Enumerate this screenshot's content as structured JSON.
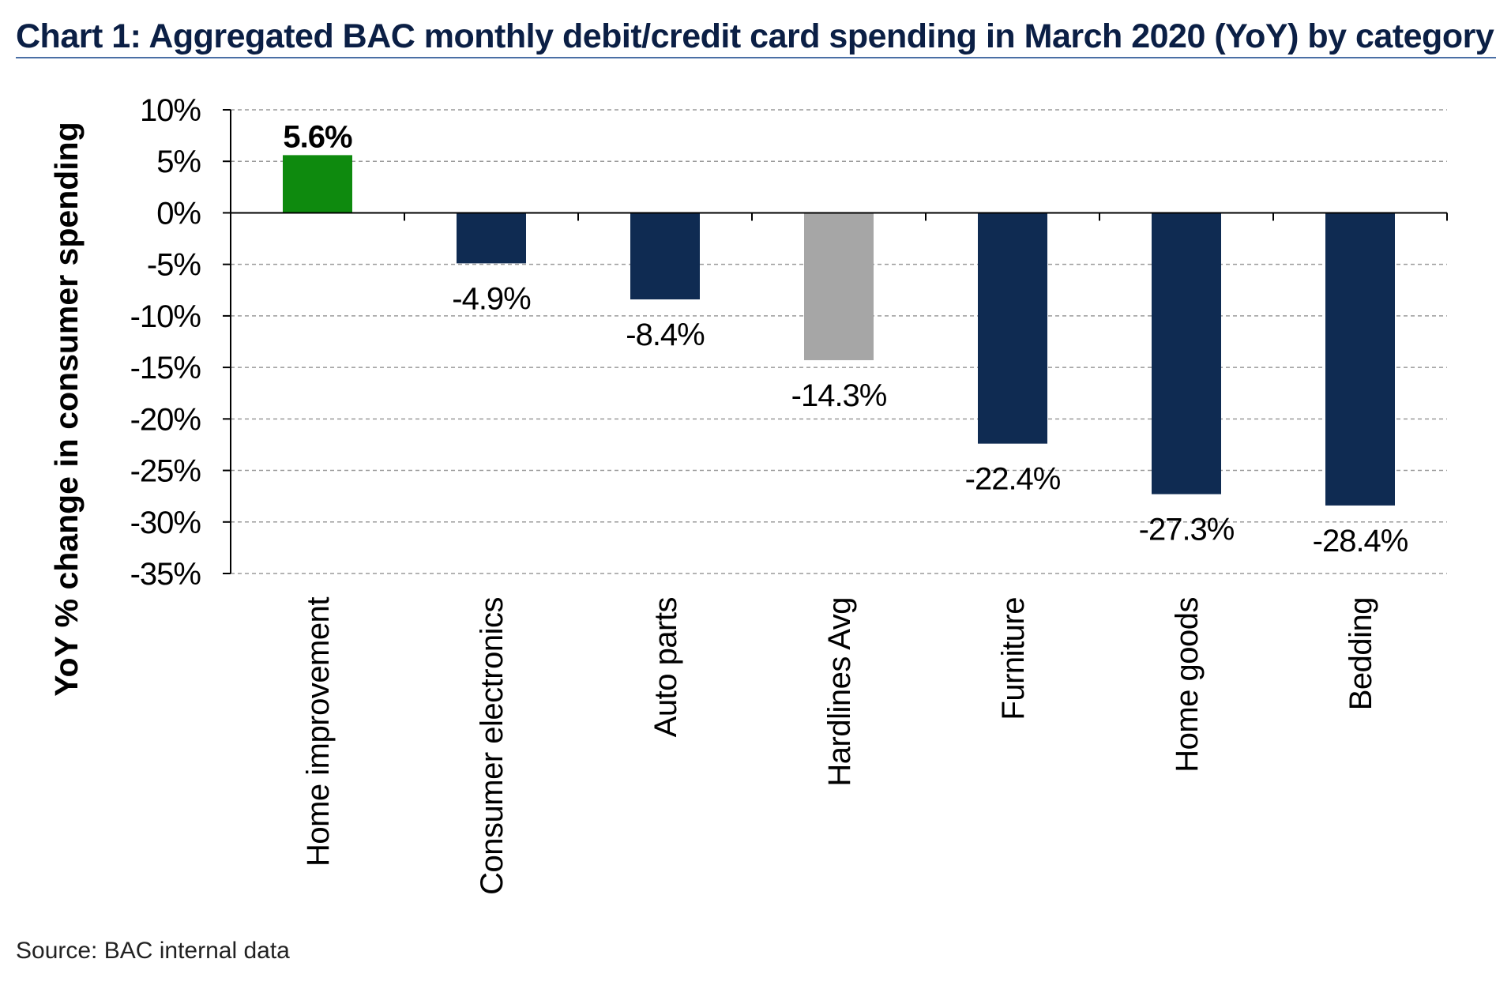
{
  "title": "Chart 1: Aggregated BAC monthly debit/credit card spending in March 2020 (YoY) by category",
  "source": "Source: BAC internal data",
  "chart_data": {
    "type": "bar",
    "title": "Chart 1: Aggregated BAC monthly debit/credit card spending in March 2020 (YoY) by category",
    "xlabel": "",
    "ylabel": "YoY % change in consumer spending",
    "ylim": [
      -35,
      10
    ],
    "yticks": [
      10,
      5,
      0,
      -5,
      -10,
      -15,
      -20,
      -25,
      -30,
      -35
    ],
    "ytick_labels": [
      "10%",
      "5%",
      "0%",
      "-5%",
      "-10%",
      "-15%",
      "-20%",
      "-25%",
      "-30%",
      "-35%"
    ],
    "grid": true,
    "legend": "none",
    "categories": [
      "Home improvement",
      "Consumer electronics",
      "Auto parts",
      "Hardlines Avg",
      "Furniture",
      "Home goods",
      "Bedding"
    ],
    "values": [
      5.6,
      -4.9,
      -8.4,
      -14.3,
      -22.4,
      -27.3,
      -28.4
    ],
    "data_labels": [
      "5.6%",
      "-4.9%",
      "-8.4%",
      "-14.3%",
      "-22.4%",
      "-27.3%",
      "-28.4%"
    ],
    "bar_colors": [
      "#0e8a0e",
      "#0f2b52",
      "#0f2b52",
      "#a6a6a6",
      "#0f2b52",
      "#0f2b52",
      "#0f2b52"
    ]
  }
}
